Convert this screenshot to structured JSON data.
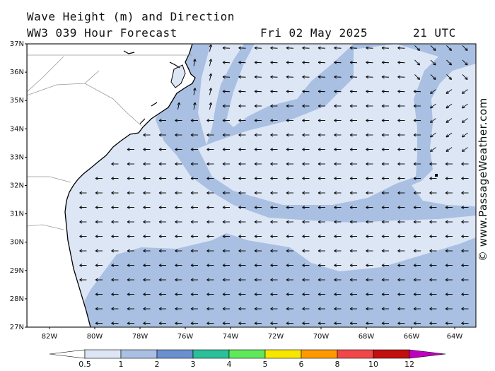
{
  "title": {
    "line1": "Wave Height (m) and Direction",
    "model": "WW3 039 Hour Forecast",
    "date": "Fri 02 May 2025",
    "time": "21 UTC"
  },
  "credit": "© www.PassageWeather.com",
  "map": {
    "lon_labels": [
      "82W",
      "80W",
      "78W",
      "76W",
      "74W",
      "72W",
      "70W",
      "68W",
      "66W",
      "64W"
    ],
    "lat_labels": [
      "37N",
      "36N",
      "35N",
      "34N",
      "33N",
      "32N",
      "31N",
      "30N",
      "29N",
      "28N",
      "27N"
    ],
    "arrow_direction": "waves travelling toward the west / southwest across the basin, north-easterly near Cape Hatteras"
  },
  "colorbar": {
    "labels": [
      "0.5",
      "1",
      "2",
      "3",
      "4",
      "5",
      "6",
      "8",
      "10",
      "12"
    ],
    "colors": [
      "#dde6f5",
      "#a9c0e3",
      "#6b8fcf",
      "#2bbf9a",
      "#5ee85a",
      "#f7e600",
      "#ff9900",
      "#f04848",
      "#c01010",
      "#c000c0"
    ],
    "under_color": "#ffffff"
  },
  "colors": {
    "land": "#ffffff",
    "low_sea": "#dde6f5",
    "mid_sea": "#a9c0e3",
    "coast": "#000000",
    "border": "#999999"
  }
}
